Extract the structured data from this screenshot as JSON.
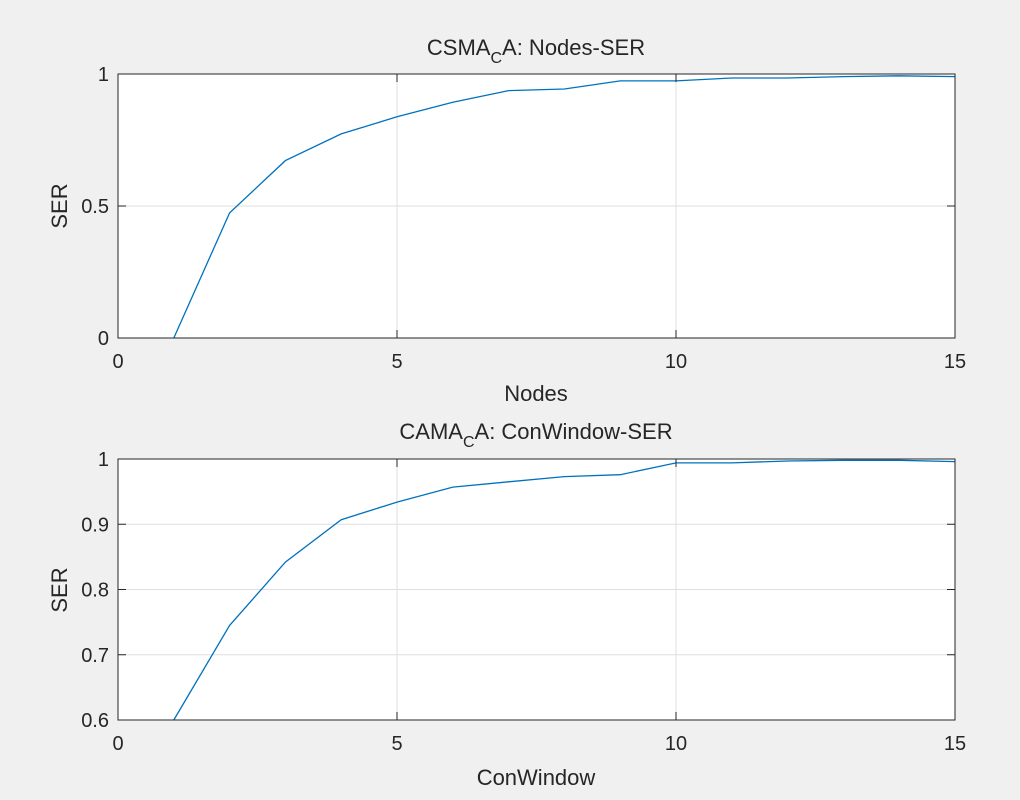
{
  "chart_data": [
    {
      "type": "line",
      "title_main": "CSMA",
      "title_sub": "C",
      "title_rest": "A: Nodes-SER",
      "xlabel": "Nodes",
      "ylabel": "SER",
      "xlim": [
        0,
        15
      ],
      "ylim": [
        0,
        1
      ],
      "xticks": [
        0,
        5,
        10,
        15
      ],
      "xtick_labels": [
        "0",
        "5",
        "10",
        "15"
      ],
      "yticks": [
        0,
        0.5,
        1
      ],
      "ytick_labels": [
        "0",
        "0.5",
        "1"
      ],
      "grid": true,
      "line_color": "#0072bd",
      "series": [
        {
          "name": "SER",
          "x": [
            1,
            2,
            3,
            4,
            5,
            6,
            7,
            8,
            9,
            10,
            11,
            12,
            13,
            14,
            15
          ],
          "y": [
            0,
            0.474,
            0.672,
            0.773,
            0.838,
            0.893,
            0.937,
            0.943,
            0.974,
            0.974,
            0.985,
            0.985,
            0.99,
            0.993,
            0.99
          ]
        }
      ]
    },
    {
      "type": "line",
      "title_main": "CAMA",
      "title_sub": "C",
      "title_rest": "A: ConWindow-SER",
      "xlabel": "ConWindow",
      "ylabel": "SER",
      "xlim": [
        0,
        15
      ],
      "ylim": [
        0.6,
        1
      ],
      "xticks": [
        0,
        5,
        10,
        15
      ],
      "xtick_labels": [
        "0",
        "5",
        "10",
        "15"
      ],
      "yticks": [
        0.6,
        0.7,
        0.8,
        0.9,
        1
      ],
      "ytick_labels": [
        "0.6",
        "0.7",
        "0.8",
        "0.9",
        "1"
      ],
      "grid": true,
      "line_color": "#0072bd",
      "series": [
        {
          "name": "SER",
          "x": [
            1,
            2,
            3,
            4,
            5,
            6,
            7,
            8,
            9,
            10,
            11,
            12,
            13,
            14,
            15
          ],
          "y": [
            0.6,
            0.745,
            0.842,
            0.907,
            0.934,
            0.957,
            0.965,
            0.973,
            0.976,
            0.994,
            0.994,
            0.997,
            0.998,
            0.998,
            0.996
          ]
        }
      ]
    }
  ]
}
